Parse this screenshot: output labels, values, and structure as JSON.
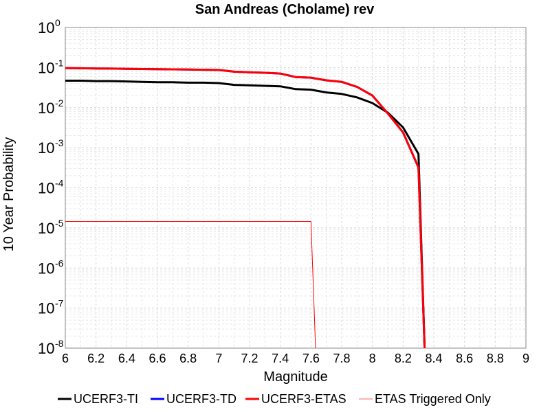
{
  "chart_data": {
    "type": "line",
    "title": "San Andreas (Cholame) rev",
    "xlabel": "Magnitude",
    "ylabel": "10 Year Probability",
    "xlim": [
      6,
      9
    ],
    "ylim": [
      1e-08,
      1
    ],
    "yscale": "log",
    "grid": true,
    "legend_position": "bottom",
    "x_ticks": [
      "6",
      "6.2",
      "6.4",
      "6.6",
      "6.8",
      "7",
      "7.2",
      "7.4",
      "7.6",
      "7.8",
      "8",
      "8.2",
      "8.4",
      "8.6",
      "8.8",
      "9"
    ],
    "y_tick_exponents": [
      0,
      -1,
      -2,
      -3,
      -4,
      -5,
      -6,
      -7,
      -8
    ],
    "y_tick_base": "10",
    "series": [
      {
        "name": "UCERF3-TI",
        "color": "#000000",
        "x": [
          6.0,
          6.1,
          6.2,
          6.3,
          6.4,
          6.5,
          6.6,
          6.7,
          6.8,
          6.9,
          7.0,
          7.1,
          7.2,
          7.3,
          7.4,
          7.5,
          7.6,
          7.7,
          7.8,
          7.9,
          8.0,
          8.1,
          8.2,
          8.3,
          8.34
        ],
        "y": [
          0.047,
          0.047,
          0.046,
          0.046,
          0.045,
          0.044,
          0.043,
          0.043,
          0.042,
          0.042,
          0.041,
          0.037,
          0.036,
          0.035,
          0.034,
          0.029,
          0.028,
          0.024,
          0.022,
          0.018,
          0.013,
          0.0075,
          0.0032,
          0.0007,
          1e-08
        ]
      },
      {
        "name": "UCERF3-TD",
        "color": "#0000ff",
        "x": [
          6.0,
          6.1,
          6.2,
          6.3,
          6.4,
          6.5,
          6.6,
          6.7,
          6.8,
          6.9,
          7.0,
          7.1,
          7.2,
          7.3,
          7.4,
          7.5,
          7.6,
          7.7,
          7.8,
          7.9,
          8.0,
          8.1,
          8.2,
          8.3,
          8.34
        ],
        "y": [
          0.097,
          0.096,
          0.095,
          0.094,
          0.093,
          0.092,
          0.091,
          0.09,
          0.089,
          0.088,
          0.087,
          0.079,
          0.076,
          0.074,
          0.071,
          0.058,
          0.056,
          0.048,
          0.044,
          0.033,
          0.02,
          0.0072,
          0.0024,
          0.00032,
          1e-08
        ]
      },
      {
        "name": "UCERF3-ETAS",
        "color": "#ff0000",
        "x": [
          6.0,
          6.1,
          6.2,
          6.3,
          6.4,
          6.5,
          6.6,
          6.7,
          6.8,
          6.9,
          7.0,
          7.1,
          7.2,
          7.3,
          7.4,
          7.5,
          7.6,
          7.7,
          7.8,
          7.9,
          8.0,
          8.1,
          8.2,
          8.3,
          8.34
        ],
        "y": [
          0.097,
          0.096,
          0.095,
          0.094,
          0.093,
          0.092,
          0.091,
          0.09,
          0.089,
          0.088,
          0.087,
          0.079,
          0.076,
          0.074,
          0.071,
          0.058,
          0.056,
          0.048,
          0.044,
          0.033,
          0.02,
          0.0072,
          0.0024,
          0.00032,
          1e-08
        ]
      },
      {
        "name": "ETAS Triggered Only",
        "color": "#ff0000",
        "x": [
          6.0,
          7.6,
          7.63
        ],
        "y": [
          1.45e-05,
          1.45e-05,
          1e-08
        ]
      }
    ]
  },
  "legend": {
    "items": [
      {
        "label": "UCERF3-TI",
        "color": "#000000"
      },
      {
        "label": "UCERF3-TD",
        "color": "#0000ff"
      },
      {
        "label": "UCERF3-ETAS",
        "color": "#ff0000"
      },
      {
        "label": "ETAS Triggered Only",
        "color": "#ff6666"
      }
    ]
  }
}
